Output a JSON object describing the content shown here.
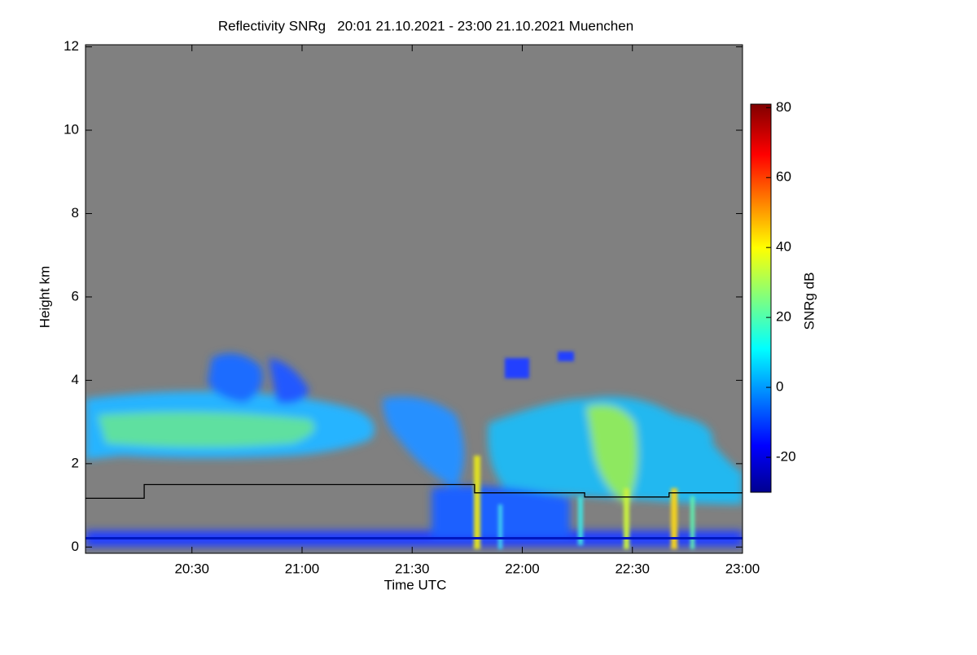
{
  "chart_data": {
    "type": "line",
    "title": "Reflectivity SNRg   20:01 21.10.2021 - 23:00 21.10.2021 Muenchen",
    "x_label": "Time UTC",
    "y_label": "Height km",
    "x": [
      1201,
      1217,
      1217,
      1307,
      1307,
      1337,
      1337,
      1360,
      1360,
      1380
    ],
    "values": [
      1.17,
      1.17,
      1.5,
      1.5,
      1.3,
      1.3,
      1.2,
      1.2,
      1.3,
      1.3
    ],
    "color": "#000000",
    "xlim": [
      1201,
      1380
    ],
    "xticks": [
      {
        "value": 1230,
        "label": "20:30"
      },
      {
        "value": 1260,
        "label": "21:00"
      },
      {
        "value": 1290,
        "label": "21:30"
      },
      {
        "value": 1320,
        "label": "22:00"
      },
      {
        "value": 1350,
        "label": "22:30"
      },
      {
        "value": 1380,
        "label": "23:00"
      }
    ],
    "ylim": [
      -0.15,
      12.05
    ],
    "yticks": [
      0,
      2,
      4,
      6,
      8,
      10,
      12
    ],
    "colorbar": {
      "label": "SNRg dB",
      "lim": [
        -30,
        81
      ],
      "ticks": [
        -20,
        0,
        20,
        40,
        60,
        80
      ]
    }
  }
}
